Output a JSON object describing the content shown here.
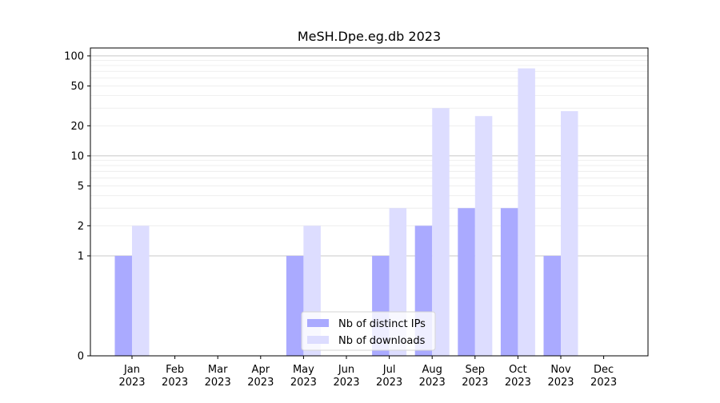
{
  "chart_data": {
    "type": "bar",
    "title": "MeSH.Dpe.eg.db 2023",
    "xlabel": "",
    "ylabel": "",
    "y_scale": "symlog",
    "ylim": [
      0,
      120
    ],
    "y_ticks": [
      0,
      1,
      2,
      5,
      10,
      20,
      50,
      100
    ],
    "y_tick_labels": [
      "0",
      "1",
      "2",
      "5",
      "10",
      "20",
      "50",
      "100"
    ],
    "grid": true,
    "legend_position": "lower-center",
    "categories": [
      "Jan\n2023",
      "Feb\n2023",
      "Mar\n2023",
      "Apr\n2023",
      "May\n2023",
      "Jun\n2023",
      "Jul\n2023",
      "Aug\n2023",
      "Sep\n2023",
      "Oct\n2023",
      "Nov\n2023",
      "Dec\n2023"
    ],
    "series": [
      {
        "name": "Nb of distinct IPs",
        "color": "#aaaaff",
        "values": [
          1,
          0,
          0,
          0,
          1,
          0,
          1,
          2,
          3,
          3,
          1,
          0
        ]
      },
      {
        "name": "Nb of downloads",
        "color": "#ddddff",
        "values": [
          2,
          0,
          0,
          0,
          2,
          0,
          3,
          30,
          25,
          75,
          28,
          0
        ]
      }
    ]
  }
}
